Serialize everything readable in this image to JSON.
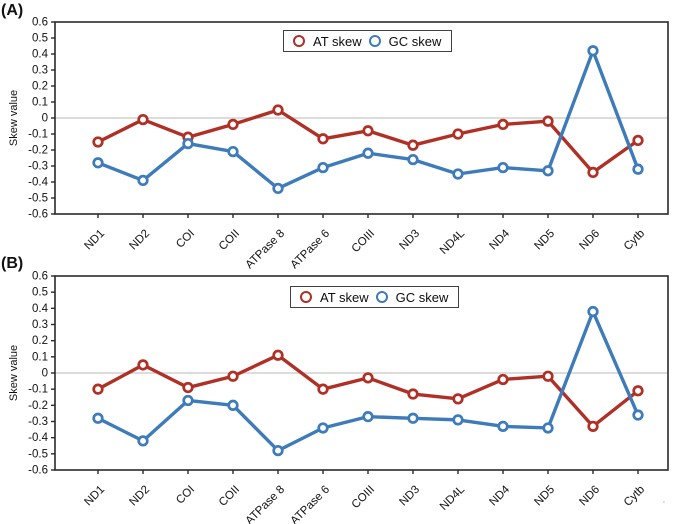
{
  "figure": {
    "artifact_mark": "'",
    "background": "#ffffff"
  },
  "chart_data": [
    {
      "type": "line",
      "panel_label": "(A)",
      "ylabel": "Skew value",
      "xlabel": "",
      "ylim": [
        -0.6,
        0.6
      ],
      "yticks": [
        0.6,
        0.5,
        0.4,
        0.3,
        0.2,
        0.1,
        0,
        -0.1,
        -0.2,
        -0.3,
        -0.4,
        -0.5,
        -0.6
      ],
      "grid": "horizontal-zero-line-only",
      "legend_position": "top-center-inside",
      "marker": "open-circle",
      "axis_color": "#2a2a2a",
      "zero_line_color": "#c8c8c8",
      "categories": [
        "ND1",
        "ND2",
        "COI",
        "COII",
        "ATPase 8",
        "ATPase 6",
        "COIII",
        "ND3",
        "ND4L",
        "ND4",
        "ND5",
        "ND6",
        "Cytb"
      ],
      "series": [
        {
          "name": "AT skew",
          "color": "#b03026",
          "values": [
            -0.15,
            -0.01,
            -0.12,
            -0.04,
            0.05,
            -0.13,
            -0.08,
            -0.17,
            -0.1,
            -0.04,
            -0.02,
            -0.34,
            -0.14
          ]
        },
        {
          "name": "GC skew",
          "color": "#3e7bba",
          "values": [
            -0.28,
            -0.39,
            -0.16,
            -0.21,
            -0.44,
            -0.31,
            -0.22,
            -0.26,
            -0.35,
            -0.31,
            -0.33,
            0.42,
            -0.32
          ]
        }
      ]
    },
    {
      "type": "line",
      "panel_label": "(B)",
      "ylabel": "Skew value",
      "xlabel": "",
      "ylim": [
        -0.6,
        0.6
      ],
      "yticks": [
        0.6,
        0.5,
        0.4,
        0.3,
        0.2,
        0.1,
        0,
        -0.1,
        -0.2,
        -0.3,
        -0.4,
        -0.5,
        -0.6
      ],
      "grid": "horizontal-zero-line-only",
      "legend_position": "top-center-inside",
      "marker": "open-circle",
      "axis_color": "#2a2a2a",
      "zero_line_color": "#c8c8c8",
      "categories": [
        "ND1",
        "ND2",
        "COI",
        "COII",
        "ATPase 8",
        "ATPase 6",
        "COIII",
        "ND3",
        "ND4L",
        "ND4",
        "ND5",
        "ND6",
        "Cytb"
      ],
      "series": [
        {
          "name": "AT skew",
          "color": "#b03026",
          "values": [
            -0.1,
            0.05,
            -0.09,
            -0.02,
            0.11,
            -0.1,
            -0.03,
            -0.13,
            -0.16,
            -0.04,
            -0.02,
            -0.33,
            -0.11
          ]
        },
        {
          "name": "GC skew",
          "color": "#3e7bba",
          "values": [
            -0.28,
            -0.42,
            -0.17,
            -0.2,
            -0.48,
            -0.34,
            -0.27,
            -0.28,
            -0.29,
            -0.33,
            -0.34,
            0.38,
            -0.26
          ]
        }
      ]
    }
  ]
}
